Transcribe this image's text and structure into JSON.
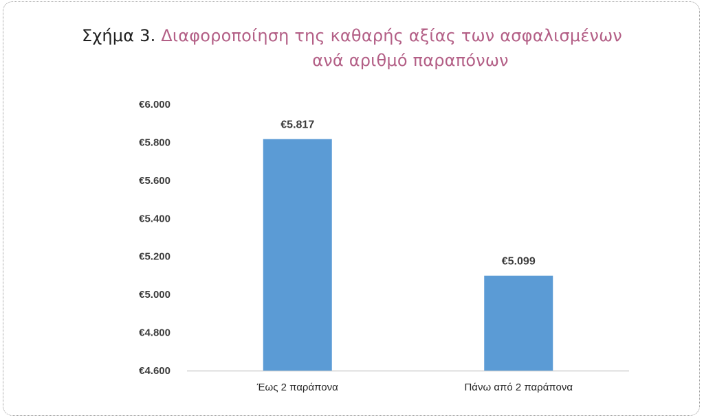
{
  "chart_data": {
    "type": "bar",
    "title_prefix": "Σχήμα 3.",
    "title_line1": "Διαφοροποίηση της καθαρής αξίας των ασφαλισμένων",
    "title_line2": "ανά αριθμό παραπόνων",
    "xlabel": "",
    "ylabel": "",
    "categories": [
      "Έως 2 παράπονα",
      "Πάνω από 2 παράπονα"
    ],
    "values": [
      5817,
      5099
    ],
    "data_labels": [
      "€5.817",
      "€5.099"
    ],
    "ylim": [
      4600,
      6000
    ],
    "yticks": [
      4600,
      4800,
      5000,
      5200,
      5400,
      5600,
      5800,
      6000
    ],
    "ytick_labels": [
      "€4.600",
      "€4.800",
      "€5.000",
      "€5.200",
      "€5.400",
      "€5.600",
      "€5.800",
      "€6.000"
    ],
    "grid": false,
    "legend": "none",
    "bar_color": "#5b9bd5",
    "title_color": "#b35f86"
  }
}
